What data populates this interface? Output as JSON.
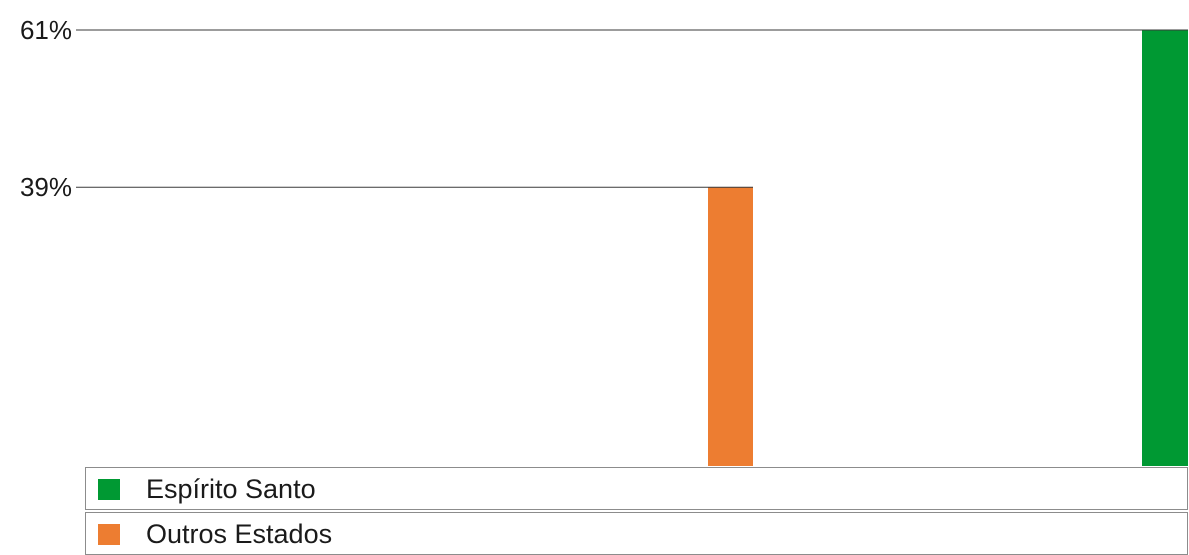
{
  "chart_data": {
    "type": "bar",
    "series": [
      {
        "name": "Espírito Santo",
        "value": 61,
        "label": "61%",
        "color": "#009933"
      },
      {
        "name": "Outros Estados",
        "value": 39,
        "label": "39%",
        "color": "#ed7d31"
      }
    ],
    "ylim": [
      0,
      61
    ],
    "grid": false,
    "legend": {
      "placement": "bottom",
      "items": [
        {
          "name": "Espírito Santo",
          "color": "#009933"
        },
        {
          "name": "Outros Estados",
          "color": "#ed7d31"
        }
      ]
    }
  }
}
